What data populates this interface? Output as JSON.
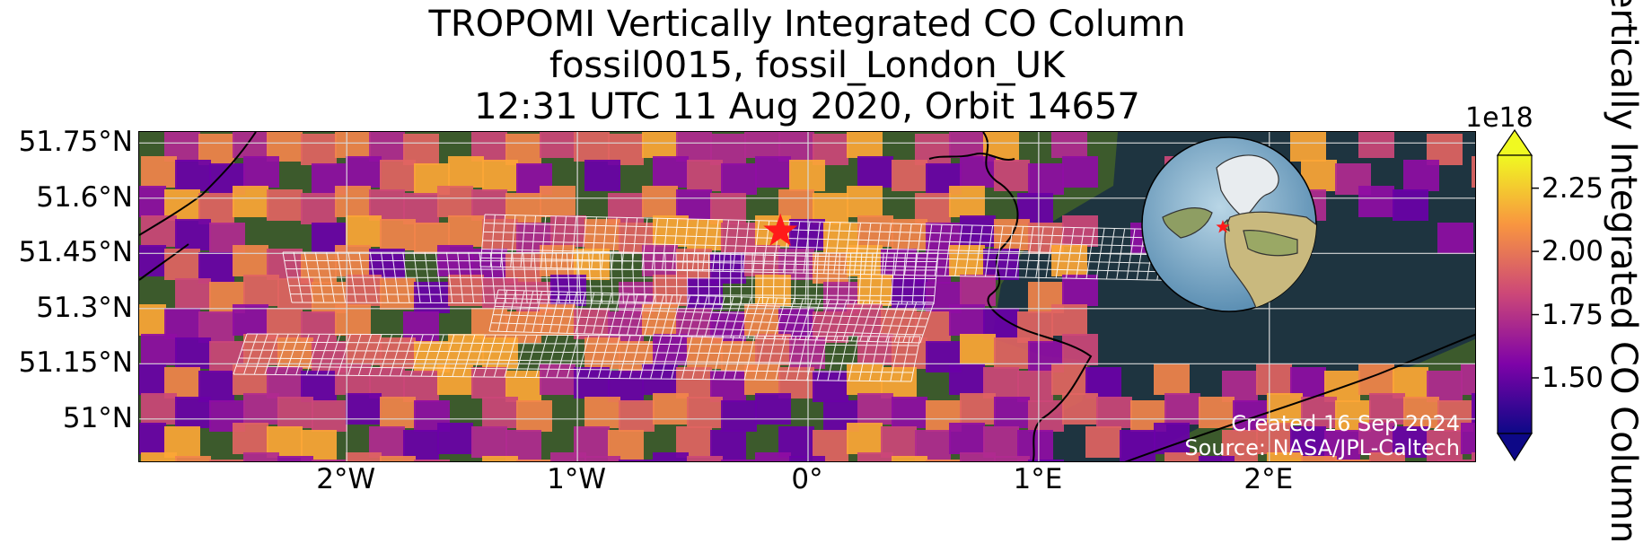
{
  "title": {
    "line1": "TROPOMI Vertically Integrated CO Column",
    "line2": "fossil0015, fossil_London_UK",
    "line3": "12:31 UTC 11 Aug 2020, Orbit 14657"
  },
  "map": {
    "lon_range": [
      -2.9,
      2.9
    ],
    "lat_range": [
      50.88,
      51.78
    ],
    "grid": true,
    "y_ticks": [
      {
        "value": 51.75,
        "label": "51.75°N"
      },
      {
        "value": 51.6,
        "label": "51.6°N"
      },
      {
        "value": 51.45,
        "label": "51.45°N"
      },
      {
        "value": 51.3,
        "label": "51.3°N"
      },
      {
        "value": 51.15,
        "label": "51.15°N"
      },
      {
        "value": 51.0,
        "label": "51°N"
      }
    ],
    "x_ticks": [
      {
        "value": -2,
        "label": "2°W"
      },
      {
        "value": -1,
        "label": "1°W"
      },
      {
        "value": 0,
        "label": "0°"
      },
      {
        "value": 1,
        "label": "1°E"
      },
      {
        "value": 2,
        "label": "2°E"
      }
    ],
    "site_marker": {
      "lon": -0.12,
      "lat": 51.51,
      "color": "#ff1a1a"
    },
    "inset_globe": {
      "marker_color": "#ff1a1a"
    }
  },
  "credits": {
    "created": "Created 16 Sep 2024",
    "source": "Source: NASA/JPL-Caltech"
  },
  "colorbar": {
    "exponent": "1e18",
    "range": [
      1.28,
      2.38
    ],
    "extend": "both",
    "colormap": "plasma",
    "ticks": [
      {
        "value": 2.25,
        "label": "2.25"
      },
      {
        "value": 2.0,
        "label": "2.00"
      },
      {
        "value": 1.75,
        "label": "1.75"
      },
      {
        "value": 1.5,
        "label": "1.50"
      }
    ],
    "label": "Vertically Integrated CO Column"
  },
  "colors": {
    "sea": "#1e3440",
    "land": "#3c5a2c",
    "grid": "#d8d8d8",
    "footprint_grid": "#ffffff"
  }
}
